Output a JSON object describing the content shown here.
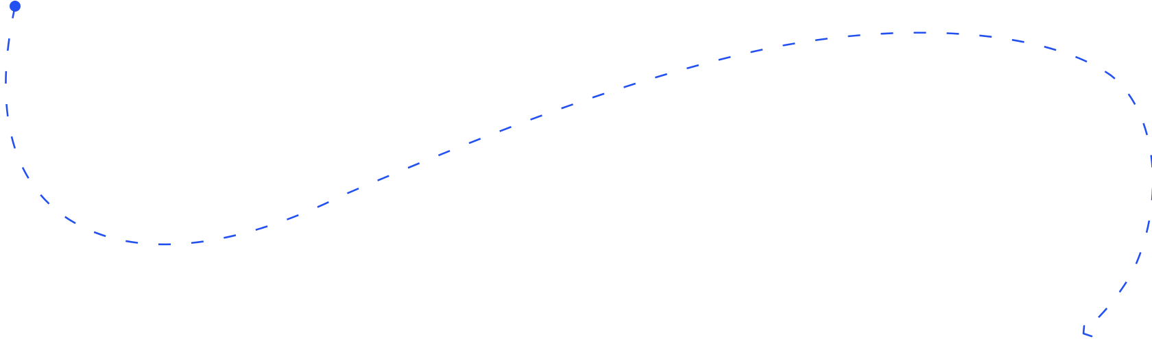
{
  "connector": {
    "color": "#2350f0",
    "line_style": "dashed",
    "start_marker": "dot",
    "end_marker": "open-arrow",
    "shape": "s-curve"
  }
}
